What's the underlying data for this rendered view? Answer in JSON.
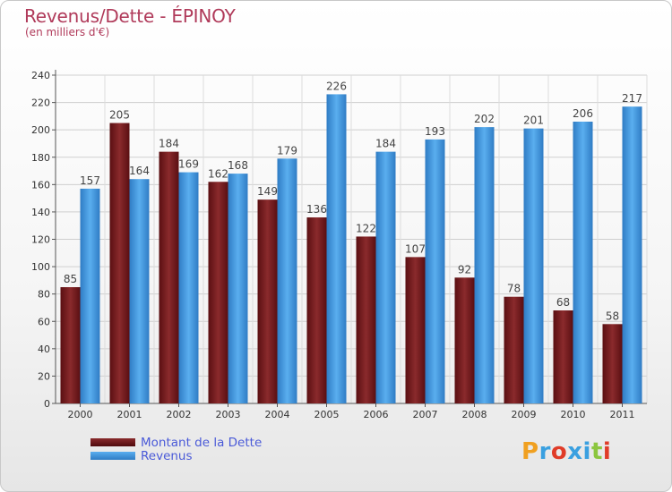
{
  "chart_data": {
    "type": "bar",
    "title": "Revenus/Dette - ÉPINOY",
    "subtitle": "(en milliers d'€)",
    "categories": [
      "2000",
      "2001",
      "2002",
      "2003",
      "2004",
      "2005",
      "2006",
      "2007",
      "2008",
      "2009",
      "2010",
      "2011"
    ],
    "series": [
      {
        "name": "Montant de la Dette",
        "color": "#7a1f22",
        "values": [
          85,
          205,
          184,
          162,
          149,
          136,
          122,
          107,
          92,
          78,
          68,
          58
        ]
      },
      {
        "name": "Revenus",
        "color": "#3f93db",
        "values": [
          157,
          164,
          169,
          168,
          179,
          226,
          184,
          193,
          202,
          201,
          206,
          217
        ]
      }
    ],
    "ylim": [
      0,
      240
    ],
    "yticks": [
      "0",
      "20",
      "40",
      "60",
      "80",
      "100",
      "120",
      "140",
      "160",
      "180",
      "200",
      "220",
      "240"
    ],
    "grid": true,
    "legend_position": "bottom-left"
  },
  "brand": {
    "text": "Proxiti",
    "letter_colors": [
      "#f0a020",
      "#3aa0e0",
      "#e03c28",
      "#3aa0e0",
      "#3aa0e0",
      "#8cc63f",
      "#e03c28"
    ]
  }
}
